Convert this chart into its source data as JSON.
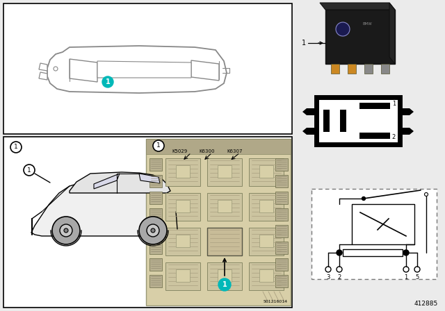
{
  "bg_color": "#ebebeb",
  "white": "#ffffff",
  "black": "#000000",
  "teal": "#00b8b8",
  "dark_gray": "#333333",
  "med_gray": "#808080",
  "light_gray": "#c8c8c8",
  "car_line": "#888888",
  "fuse_box_bg": "#c8c0a0",
  "fuse_slot_dark": "#909080",
  "fuse_slot_light": "#e8e0c0",
  "part_number": "412885",
  "fuse_labels": [
    "K5029",
    "K6300",
    "K6307"
  ],
  "pin_labels_box": [
    "1",
    "2",
    "3",
    "5"
  ],
  "pin_labels_circuit": [
    "3",
    "2",
    "1",
    "5"
  ],
  "label_code": "S01216014"
}
